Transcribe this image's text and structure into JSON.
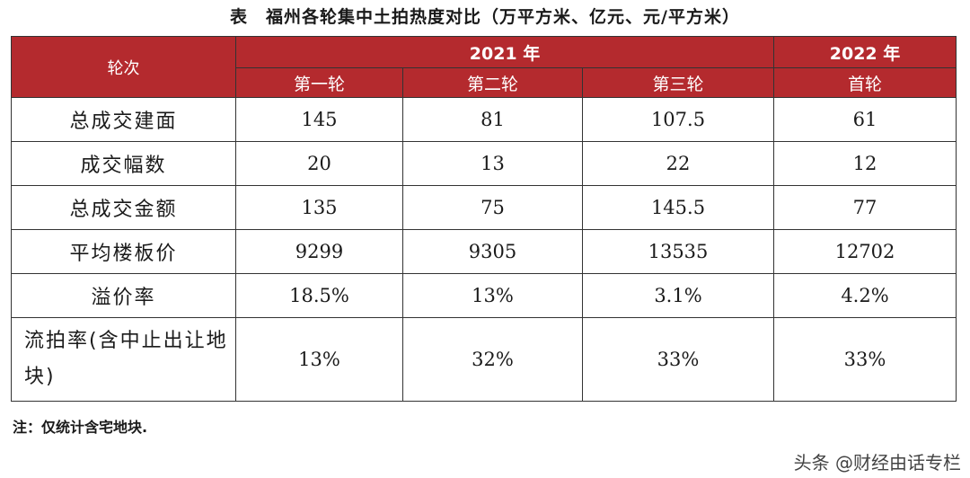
{
  "title": "表　福州各轮集中土拍热度对比（万平方米、亿元、元/平方米）",
  "header": {
    "round_label": "轮次",
    "year_2021": "2021 年",
    "year_2022": "2022 年",
    "rounds": [
      "第一轮",
      "第二轮",
      "第三轮",
      "首轮"
    ]
  },
  "rows": [
    {
      "label": "总成交建面",
      "values": [
        "145",
        "81",
        "107.5",
        "61"
      ]
    },
    {
      "label": "成交幅数",
      "values": [
        "20",
        "13",
        "22",
        "12"
      ]
    },
    {
      "label": "总成交金额",
      "values": [
        "135",
        "75",
        "145.5",
        "77"
      ]
    },
    {
      "label": "平均楼板价",
      "values": [
        "9299",
        "9305",
        "13535",
        "12702"
      ]
    },
    {
      "label": "溢价率",
      "values": [
        "18.5%",
        "13%",
        "3.1%",
        "4.2%"
      ]
    },
    {
      "label": "流拍率(含中止出让地块)",
      "values": [
        "13%",
        "32%",
        "33%",
        "33%"
      ]
    }
  ],
  "note": "注：仅统计含宅地块.",
  "watermark": "头条 @财经由话专栏",
  "colors": {
    "header_bg": "#b42a2e",
    "header_text": "#ffffff"
  }
}
